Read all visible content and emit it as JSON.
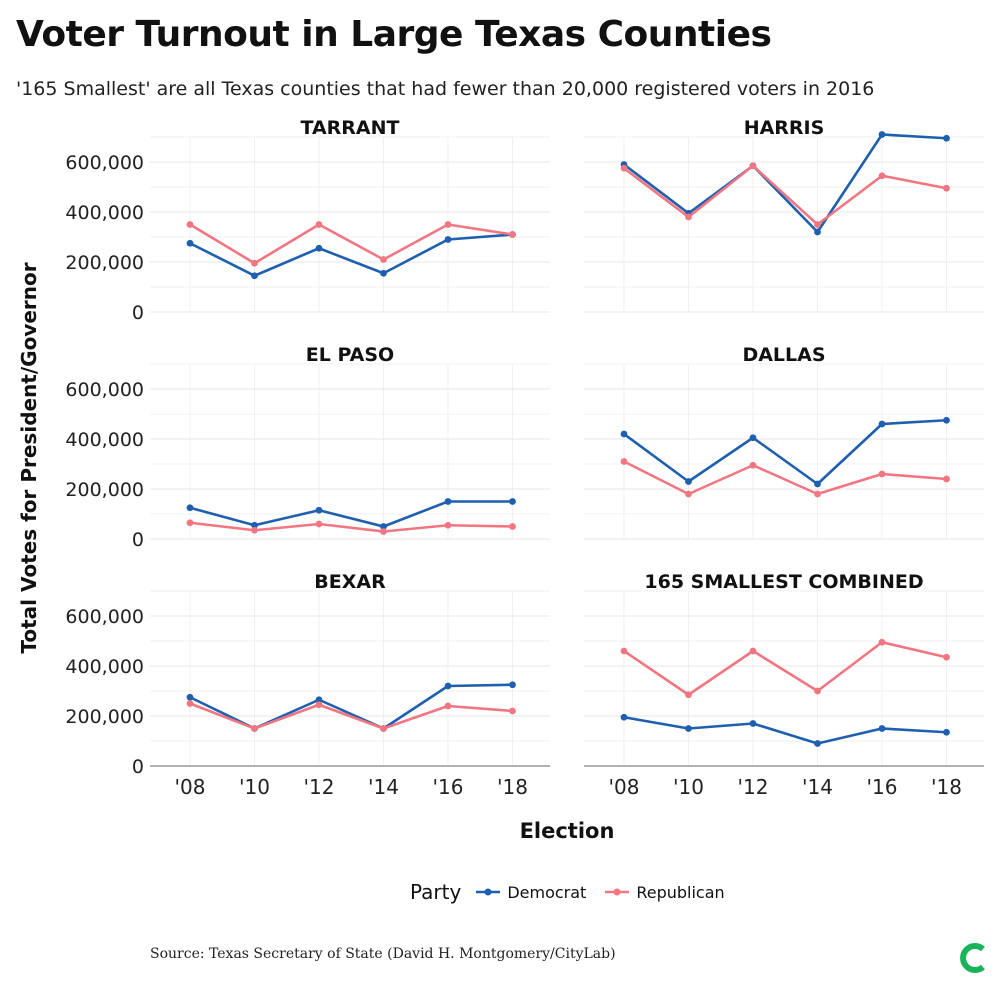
{
  "title": "Voter Turnout in Large Texas Counties",
  "subtitle": "'165 Smallest' are all Texas counties that had fewer than 20,000 registered voters in 2016",
  "source": "Source: Texas Secretary of State (David H. Montgomery/CityLab)",
  "logo_icon": "citylab-logo-icon",
  "colors": {
    "democrat": "#1f5fb0",
    "republican": "#f27682",
    "grid": "#ececec",
    "axis": "#999999"
  },
  "legend": {
    "title": "Party",
    "items": [
      "Democrat",
      "Republican"
    ],
    "placement": "bottom-center"
  },
  "chart_data": {
    "type": "line",
    "xlabel": "Election",
    "ylabel": "Total Votes for President/Governor",
    "categories": [
      "'08",
      "'10",
      "'12",
      "'14",
      "'16",
      "'18"
    ],
    "ylim": [
      0,
      700000
    ],
    "yticks": [
      0,
      200000,
      400000,
      600000
    ],
    "ytick_labels": [
      "0",
      "200,000",
      "400,000",
      "600,000"
    ],
    "grid": true,
    "panels": [
      {
        "title": "TARRANT",
        "series": [
          {
            "name": "Democrat",
            "values": [
              275000,
              145000,
              255000,
              155000,
              290000,
              310000
            ]
          },
          {
            "name": "Republican",
            "values": [
              350000,
              195000,
              350000,
              210000,
              350000,
              310000
            ]
          }
        ]
      },
      {
        "title": "HARRIS",
        "series": [
          {
            "name": "Democrat",
            "values": [
              590000,
              395000,
              585000,
              320000,
              710000,
              695000
            ]
          },
          {
            "name": "Republican",
            "values": [
              575000,
              380000,
              585000,
              350000,
              545000,
              495000
            ]
          }
        ]
      },
      {
        "title": "EL PASO",
        "series": [
          {
            "name": "Democrat",
            "values": [
              125000,
              55000,
              115000,
              50000,
              150000,
              150000
            ]
          },
          {
            "name": "Republican",
            "values": [
              65000,
              35000,
              60000,
              30000,
              55000,
              50000
            ]
          }
        ]
      },
      {
        "title": "DALLAS",
        "series": [
          {
            "name": "Democrat",
            "values": [
              420000,
              230000,
              405000,
              220000,
              460000,
              475000
            ]
          },
          {
            "name": "Republican",
            "values": [
              310000,
              180000,
              295000,
              180000,
              260000,
              240000
            ]
          }
        ]
      },
      {
        "title": "BEXAR",
        "series": [
          {
            "name": "Democrat",
            "values": [
              275000,
              150000,
              265000,
              150000,
              320000,
              325000
            ]
          },
          {
            "name": "Republican",
            "values": [
              250000,
              150000,
              245000,
              150000,
              240000,
              220000
            ]
          }
        ]
      },
      {
        "title": "165 SMALLEST COMBINED",
        "series": [
          {
            "name": "Democrat",
            "values": [
              195000,
              150000,
              170000,
              90000,
              150000,
              135000
            ]
          },
          {
            "name": "Republican",
            "values": [
              460000,
              285000,
              460000,
              300000,
              495000,
              435000
            ]
          }
        ]
      }
    ]
  }
}
